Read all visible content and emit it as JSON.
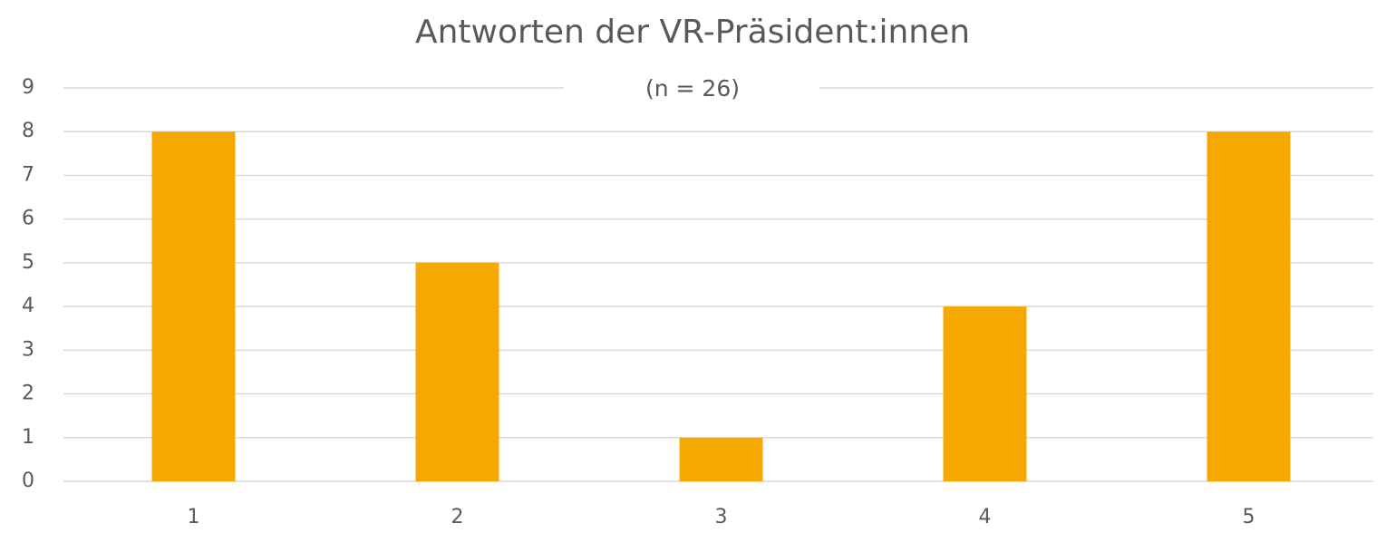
{
  "chart_data": {
    "type": "bar",
    "title": "Antworten der VR-Präsident:innen",
    "subtitle": "(n = 26)",
    "categories": [
      "1",
      "2",
      "3",
      "4",
      "5"
    ],
    "values": [
      8,
      5,
      1,
      4,
      8
    ],
    "color": "#f5a800",
    "ylim": [
      0,
      9
    ],
    "yticks": [
      0,
      1,
      2,
      3,
      4,
      5,
      6,
      7,
      8,
      9
    ],
    "grid": true
  }
}
